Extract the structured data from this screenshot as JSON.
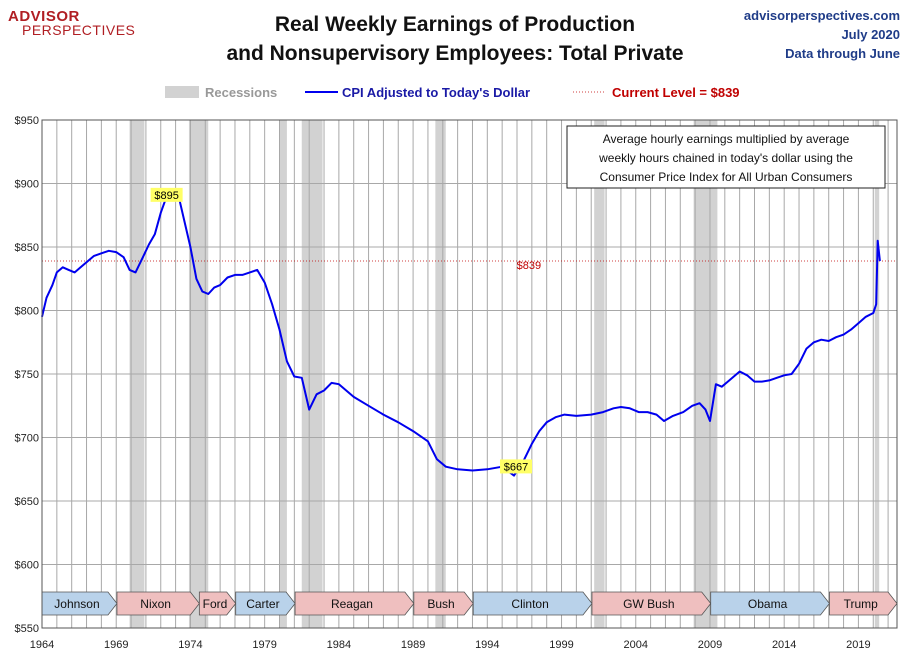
{
  "logo": {
    "line1": "ADVISOR",
    "line2": "PERSPECTIVES"
  },
  "header": {
    "title_line1": "Real Weekly Earnings of Production",
    "title_line2": "and Nonsupervisory Employees: Total Private",
    "source": "advisorperspectives.com",
    "date": "July 2020",
    "data_through": "Data through June"
  },
  "colors": {
    "series": "#0000ee",
    "recession": "#d2d2d2",
    "current_level": "#c00000",
    "highlight": "#ffff66",
    "president_blue": "#b9d2ea",
    "president_red": "#efbfbf"
  },
  "chart_data": {
    "type": "line",
    "legend": {
      "recessions": "Recessions",
      "series": "CPI Adjusted to Today's Dollar",
      "current_level": "Current Level = $839"
    },
    "annotation": "Average hourly earnings multiplied by average weekly hours chained in today's dollar using the Consumer Price Index for All Urban Consumers",
    "annotation_lines": [
      "Average hourly earnings multiplied by average",
      "weekly hours chained in today's dollar using the",
      "Consumer Price Index for All Urban Consumers"
    ],
    "xlim": [
      1964,
      2021.6
    ],
    "ylim": [
      550,
      950
    ],
    "x_ticks": [
      1964,
      1969,
      1974,
      1979,
      1984,
      1989,
      1994,
      1999,
      2004,
      2009,
      2014,
      2019
    ],
    "y_ticks": [
      550,
      600,
      650,
      700,
      750,
      800,
      850,
      900,
      950
    ],
    "y_tick_labels": [
      "$550",
      "$600",
      "$650",
      "$700",
      "$750",
      "$800",
      "$850",
      "$900",
      "$950"
    ],
    "current_level": {
      "value": 839,
      "label": "$839",
      "x": 1996.8
    },
    "peak": {
      "x": 1972.8,
      "value": 895,
      "label": "$895"
    },
    "trough": {
      "x": 1995.8,
      "value": 667,
      "label": "$667"
    },
    "recessions": [
      [
        1969.9,
        1970.9
      ],
      [
        1973.9,
        1975.2
      ],
      [
        1980.0,
        1980.5
      ],
      [
        1981.5,
        1982.9
      ],
      [
        1990.5,
        1991.2
      ],
      [
        2001.2,
        2001.9
      ],
      [
        2007.9,
        2009.5
      ],
      [
        2020.1,
        2020.4
      ]
    ],
    "presidents": [
      {
        "name": "Johnson",
        "start": 1964.0,
        "end": 1969.05,
        "party": "D"
      },
      {
        "name": "Nixon",
        "start": 1969.05,
        "end": 1974.6,
        "party": "R"
      },
      {
        "name": "Ford",
        "start": 1974.6,
        "end": 1977.05,
        "party": "R"
      },
      {
        "name": "Carter",
        "start": 1977.05,
        "end": 1981.05,
        "party": "D"
      },
      {
        "name": "Reagan",
        "start": 1981.05,
        "end": 1989.05,
        "party": "R"
      },
      {
        "name": "Bush",
        "start": 1989.05,
        "end": 1993.05,
        "party": "R"
      },
      {
        "name": "Clinton",
        "start": 1993.05,
        "end": 2001.05,
        "party": "D"
      },
      {
        "name": "GW Bush",
        "start": 2001.05,
        "end": 2009.05,
        "party": "R"
      },
      {
        "name": "Obama",
        "start": 2009.05,
        "end": 2017.05,
        "party": "D"
      },
      {
        "name": "Trump",
        "start": 2017.05,
        "end": 2021.6,
        "party": "R"
      }
    ],
    "series": [
      {
        "name": "CPI Adjusted to Today's Dollar",
        "x": [
          1964.0,
          1964.3,
          1964.7,
          1965.0,
          1965.4,
          1965.8,
          1966.2,
          1966.6,
          1967.0,
          1967.5,
          1968.0,
          1968.5,
          1969.0,
          1969.5,
          1969.9,
          1970.3,
          1970.8,
          1971.2,
          1971.6,
          1972.0,
          1972.4,
          1972.8,
          1973.2,
          1973.6,
          1974.0,
          1974.4,
          1974.8,
          1975.2,
          1975.6,
          1976.0,
          1976.5,
          1977.0,
          1977.5,
          1978.0,
          1978.5,
          1979.0,
          1979.5,
          1980.0,
          1980.5,
          1981.0,
          1981.5,
          1982.0,
          1982.5,
          1983.0,
          1983.5,
          1984.0,
          1985.0,
          1986.0,
          1987.0,
          1988.0,
          1989.0,
          1990.0,
          1990.6,
          1991.2,
          1992.0,
          1993.0,
          1994.0,
          1995.0,
          1995.8,
          1996.5,
          1997.0,
          1997.5,
          1998.0,
          1998.6,
          1999.2,
          2000.0,
          2001.0,
          2001.8,
          2002.5,
          2003.0,
          2003.6,
          2004.2,
          2004.8,
          2005.4,
          2005.9,
          2006.5,
          2007.2,
          2007.8,
          2008.3,
          2008.7,
          2009.0,
          2009.4,
          2009.8,
          2010.3,
          2011.0,
          2011.5,
          2012.0,
          2012.5,
          2013.0,
          2013.5,
          2014.0,
          2014.5,
          2015.0,
          2015.5,
          2016.0,
          2016.5,
          2017.0,
          2017.5,
          2018.0,
          2018.5,
          2019.0,
          2019.5,
          2020.0,
          2020.2,
          2020.3,
          2020.45
        ],
        "values": [
          795,
          810,
          820,
          830,
          834,
          832,
          830,
          834,
          838,
          843,
          845,
          847,
          846,
          842,
          832,
          830,
          842,
          852,
          860,
          877,
          890,
          893,
          890,
          870,
          850,
          825,
          815,
          813,
          818,
          820,
          826,
          828,
          828,
          830,
          832,
          822,
          805,
          785,
          760,
          748,
          747,
          722,
          734,
          737,
          743,
          742,
          732,
          725,
          718,
          712,
          705,
          697,
          683,
          677,
          675,
          674,
          675,
          677,
          670,
          683,
          695,
          705,
          712,
          716,
          718,
          717,
          718,
          720,
          723,
          724,
          723,
          720,
          720,
          718,
          713,
          717,
          720,
          725,
          727,
          722,
          713,
          742,
          740,
          745,
          752,
          749,
          744,
          744,
          745,
          747,
          749,
          750,
          758,
          770,
          775,
          777,
          776,
          779,
          781,
          785,
          790,
          795,
          798,
          805,
          855,
          839
        ]
      }
    ]
  }
}
